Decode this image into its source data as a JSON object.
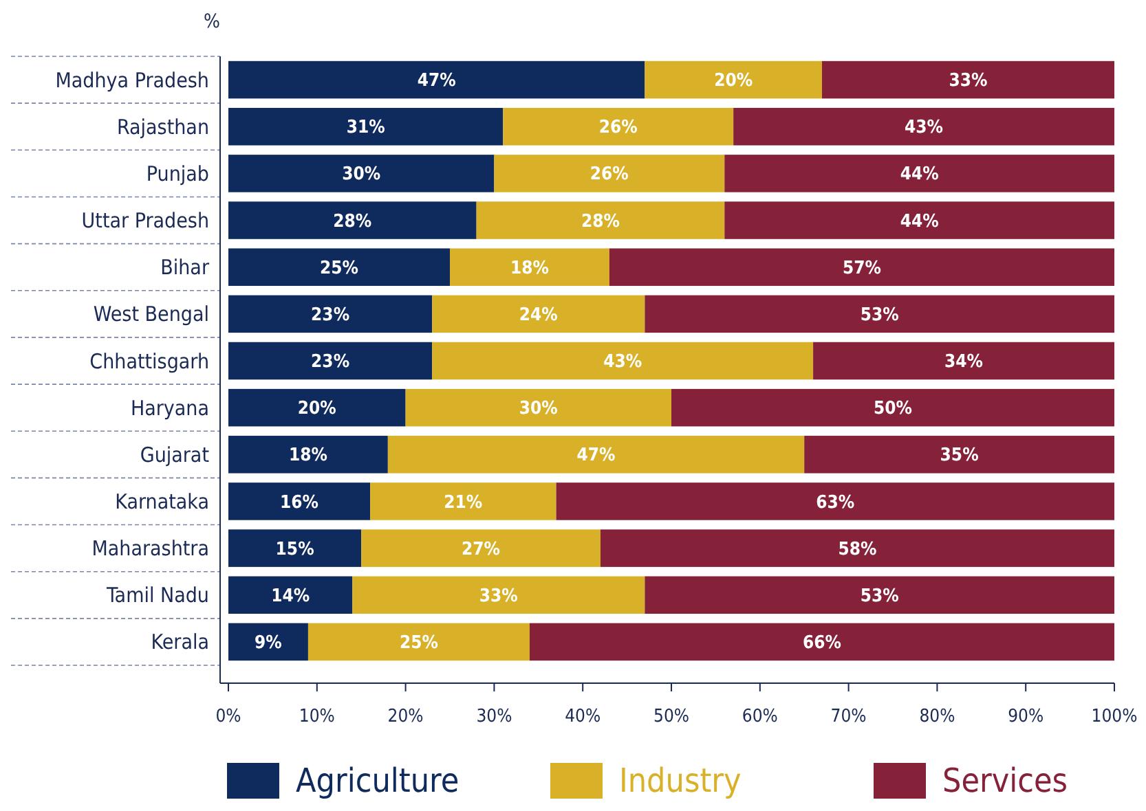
{
  "chart_data": {
    "type": "bar",
    "orientation": "horizontal",
    "stacked": true,
    "xlabel": "%",
    "categories": [
      "Madhya Pradesh",
      "Rajasthan",
      "Punjab",
      "Uttar Pradesh",
      "Bihar",
      "West Bengal",
      "Chhattisgarh",
      "Haryana",
      "Gujarat",
      "Karnataka",
      "Maharashtra",
      "Tamil Nadu",
      "Kerala"
    ],
    "series": [
      {
        "name": "Agriculture",
        "color": "#0f2a5c",
        "values": [
          47,
          31,
          30,
          28,
          25,
          23,
          23,
          20,
          18,
          16,
          15,
          14,
          9
        ],
        "value_labels": [
          "47%",
          "31%",
          "30%",
          "28%",
          "25%",
          "23%",
          "23%",
          "20%",
          "18%",
          "16%",
          "15%",
          "14%",
          "9%"
        ]
      },
      {
        "name": "Industry",
        "color": "#d9b128",
        "values": [
          20,
          26,
          26,
          28,
          18,
          24,
          43,
          30,
          47,
          21,
          27,
          33,
          25
        ],
        "value_labels": [
          "20%",
          "26%",
          "26%",
          "28%",
          "18%",
          "24%",
          "43%",
          "30%",
          "47%",
          "21%",
          "27%",
          "33%",
          "25%"
        ]
      },
      {
        "name": "Services",
        "color": "#85223a",
        "values": [
          33,
          43,
          44,
          44,
          57,
          53,
          34,
          50,
          35,
          63,
          58,
          53,
          66
        ],
        "value_labels": [
          "33%",
          "43%",
          "44%",
          "44%",
          "57%",
          "53%",
          "34%",
          "50%",
          "35%",
          "63%",
          "58%",
          "53%",
          "66%"
        ]
      }
    ],
    "xlim": [
      0,
      100
    ],
    "xticks": [
      {
        "value": 0,
        "label": "0%"
      },
      {
        "value": 10,
        "label": "10%"
      },
      {
        "value": 20,
        "label": "20%"
      },
      {
        "value": 30,
        "label": "30%"
      },
      {
        "value": 40,
        "label": "40%"
      },
      {
        "value": 50,
        "label": "50%"
      },
      {
        "value": 60,
        "label": "60%"
      },
      {
        "value": 70,
        "label": "70%"
      },
      {
        "value": 80,
        "label": "80%"
      },
      {
        "value": 90,
        "label": "90%"
      },
      {
        "value": 100,
        "label": "100%"
      }
    ],
    "legend": "bottom",
    "grid": false
  }
}
